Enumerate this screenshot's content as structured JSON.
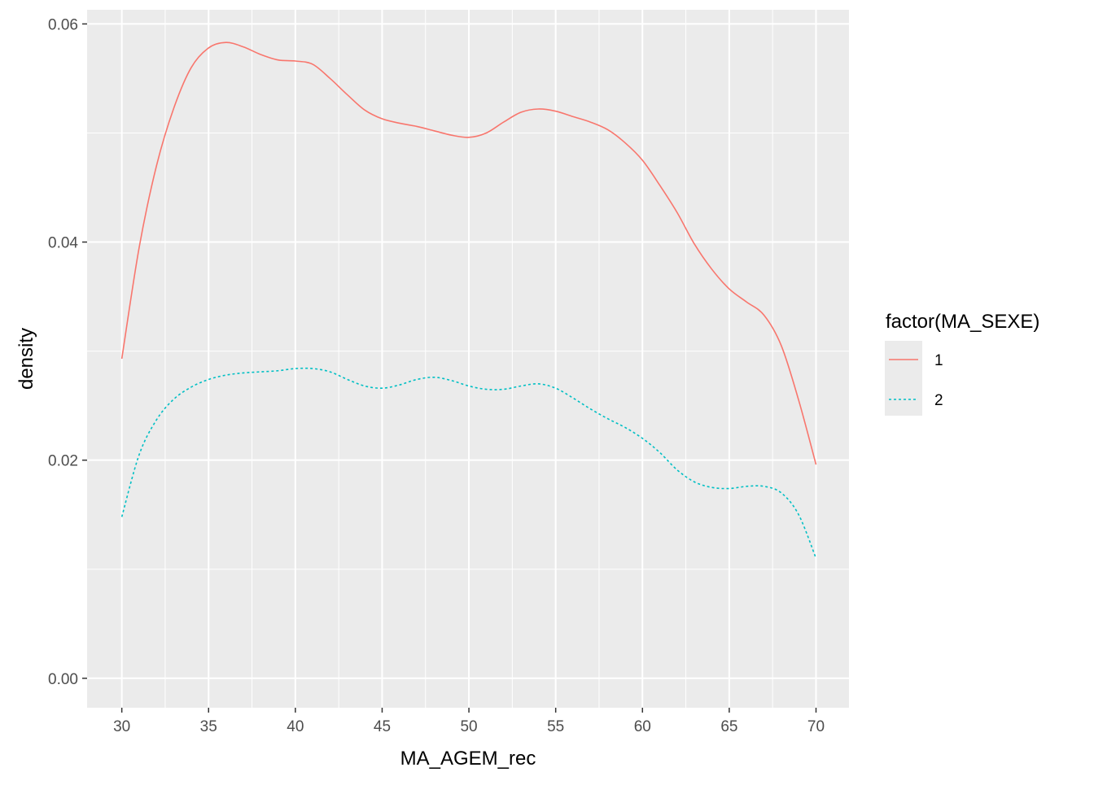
{
  "chart_data": {
    "type": "line",
    "title": "",
    "xlabel": "MA_AGEM_rec",
    "ylabel": "density",
    "xlim": [
      28,
      71.9
    ],
    "ylim": [
      -0.0027,
      0.0613
    ],
    "x_ticks": [
      30,
      35,
      40,
      45,
      50,
      55,
      60,
      65,
      70
    ],
    "x_tick_labels": [
      "30",
      "35",
      "40",
      "45",
      "50",
      "55",
      "60",
      "65",
      "70"
    ],
    "x_minor_ticks": [
      32.5,
      37.5,
      42.5,
      47.5,
      52.5,
      57.5,
      62.5,
      67.5
    ],
    "y_ticks": [
      0,
      0.02,
      0.04,
      0.06
    ],
    "y_tick_labels": [
      "0.00",
      "0.02",
      "0.04",
      "0.06"
    ],
    "y_minor_ticks": [
      0.01,
      0.03,
      0.05
    ],
    "grid": true,
    "panel_background": "#ebebeb",
    "grid_color": "#ffffff",
    "legend": {
      "title": "factor(MA_SEXE)",
      "position": "right"
    },
    "series": [
      {
        "name": "1",
        "color": "#f8766d",
        "linetype": "solid",
        "x": [
          30,
          31,
          32,
          33,
          34,
          35,
          36,
          37,
          38,
          39,
          40,
          41,
          42,
          43,
          44,
          45,
          46,
          47,
          48,
          49,
          50,
          51,
          52,
          53,
          54,
          55,
          56,
          57,
          58,
          59,
          60,
          61,
          62,
          63,
          64,
          65,
          66,
          67,
          68,
          69,
          70
        ],
        "y": [
          0.0293,
          0.0395,
          0.047,
          0.0523,
          0.056,
          0.0578,
          0.0583,
          0.0579,
          0.0572,
          0.0567,
          0.0566,
          0.0563,
          0.055,
          0.0535,
          0.0521,
          0.0513,
          0.0509,
          0.0506,
          0.0502,
          0.0498,
          0.0496,
          0.05,
          0.051,
          0.0519,
          0.0522,
          0.052,
          0.0515,
          0.051,
          0.0503,
          0.0491,
          0.0475,
          0.0452,
          0.0427,
          0.0398,
          0.0375,
          0.0357,
          0.0345,
          0.0333,
          0.0305,
          0.0255,
          0.0196
        ]
      },
      {
        "name": "2",
        "color": "#00bfc4",
        "linetype": "dashed",
        "x": [
          30,
          31,
          32,
          33,
          34,
          35,
          36,
          37,
          38,
          39,
          40,
          41,
          42,
          43,
          44,
          45,
          46,
          47,
          48,
          49,
          50,
          51,
          52,
          53,
          54,
          55,
          56,
          57,
          58,
          59,
          60,
          61,
          62,
          63,
          64,
          65,
          66,
          67,
          68,
          69,
          70
        ],
        "y": [
          0.0148,
          0.0205,
          0.0237,
          0.0256,
          0.0267,
          0.0274,
          0.0278,
          0.028,
          0.0281,
          0.0282,
          0.0284,
          0.0284,
          0.0281,
          0.0274,
          0.0268,
          0.0266,
          0.0269,
          0.0274,
          0.0276,
          0.0273,
          0.0268,
          0.0265,
          0.0265,
          0.0268,
          0.027,
          0.0266,
          0.0257,
          0.0247,
          0.0238,
          0.023,
          0.022,
          0.0207,
          0.0191,
          0.018,
          0.0175,
          0.0174,
          0.0176,
          0.0176,
          0.017,
          0.015,
          0.011
        ]
      }
    ]
  }
}
